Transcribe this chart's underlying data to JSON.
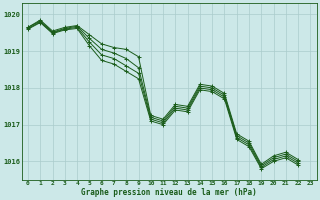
{
  "background_color": "#cce8e8",
  "plot_background": "#cce8e8",
  "grid_color": "#aacccc",
  "line_color": "#1a5c1a",
  "marker_color": "#1a5c1a",
  "xlabel": "Graphe pression niveau de la mer (hPa)",
  "ylim": [
    1015.5,
    1020.3
  ],
  "xlim": [
    -0.5,
    23.5
  ],
  "yticks": [
    1016,
    1017,
    1018,
    1019,
    1020
  ],
  "xticks": [
    0,
    1,
    2,
    3,
    4,
    5,
    6,
    7,
    8,
    9,
    10,
    11,
    12,
    13,
    14,
    15,
    16,
    17,
    18,
    19,
    20,
    21,
    22,
    23
  ],
  "series": [
    [
      1019.65,
      1019.85,
      1019.55,
      1019.65,
      1019.7,
      1019.45,
      1019.2,
      1019.1,
      1019.05,
      1018.85,
      1017.25,
      1017.15,
      1017.55,
      1017.5,
      1018.1,
      1018.05,
      1017.85,
      1016.75,
      1016.55,
      1015.92,
      1016.15,
      1016.25,
      1016.05
    ],
    [
      1019.65,
      1019.82,
      1019.52,
      1019.62,
      1019.68,
      1019.35,
      1019.05,
      1018.95,
      1018.8,
      1018.55,
      1017.2,
      1017.1,
      1017.5,
      1017.45,
      1018.05,
      1018.0,
      1017.8,
      1016.7,
      1016.5,
      1015.88,
      1016.1,
      1016.2,
      1016.0
    ],
    [
      1019.62,
      1019.8,
      1019.5,
      1019.6,
      1019.65,
      1019.25,
      1018.9,
      1018.8,
      1018.6,
      1018.4,
      1017.15,
      1017.05,
      1017.45,
      1017.4,
      1018.0,
      1017.95,
      1017.75,
      1016.65,
      1016.45,
      1015.84,
      1016.05,
      1016.15,
      1015.95
    ],
    [
      1019.6,
      1019.78,
      1019.48,
      1019.58,
      1019.62,
      1019.15,
      1018.75,
      1018.65,
      1018.45,
      1018.25,
      1017.1,
      1017.0,
      1017.4,
      1017.35,
      1017.95,
      1017.9,
      1017.7,
      1016.6,
      1016.4,
      1015.8,
      1016.0,
      1016.1,
      1015.9
    ]
  ]
}
